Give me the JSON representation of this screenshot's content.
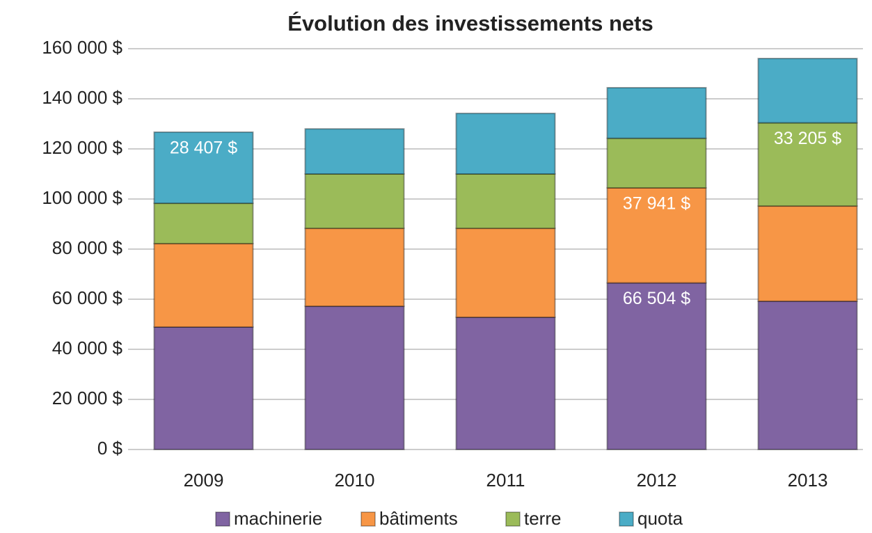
{
  "chart_data": {
    "type": "stacked_bar",
    "title": "Évolution des investissements nets",
    "categories": [
      "2009",
      "2010",
      "2011",
      "2012",
      "2013"
    ],
    "series": [
      {
        "name": "machinerie",
        "color": "#8064a2",
        "values": [
          48900,
          57200,
          52800,
          66504,
          59200
        ],
        "value_labels": [
          null,
          null,
          null,
          "66 504 $",
          null
        ]
      },
      {
        "name": "bâtiments",
        "color": "#f79646",
        "values": [
          33300,
          31100,
          35500,
          37941,
          38000
        ],
        "value_labels": [
          null,
          null,
          null,
          "37 941 $",
          null
        ]
      },
      {
        "name": "terre",
        "color": "#9bbb59",
        "values": [
          16100,
          21700,
          21700,
          19800,
          33205
        ],
        "value_labels": [
          null,
          null,
          null,
          null,
          "33 205 $"
        ]
      },
      {
        "name": "quota",
        "color": "#4bacc6",
        "values": [
          28407,
          18000,
          24200,
          20200,
          25700
        ],
        "value_labels": [
          "28 407 $",
          null,
          null,
          null,
          null
        ]
      }
    ],
    "ylim": [
      0,
      160000
    ],
    "yticks": [
      {
        "value": 0,
        "label": "0 $"
      },
      {
        "value": 20000,
        "label": "20 000 $"
      },
      {
        "value": 40000,
        "label": "40 000 $"
      },
      {
        "value": 60000,
        "label": "60 000 $"
      },
      {
        "value": 80000,
        "label": "80 000 $"
      },
      {
        "value": 100000,
        "label": "100 000 $"
      },
      {
        "value": 120000,
        "label": "120 000 $"
      },
      {
        "value": 140000,
        "label": "140 000 $"
      },
      {
        "value": 160000,
        "label": "160 000 $"
      }
    ],
    "grid": true,
    "legend": "bottom"
  }
}
